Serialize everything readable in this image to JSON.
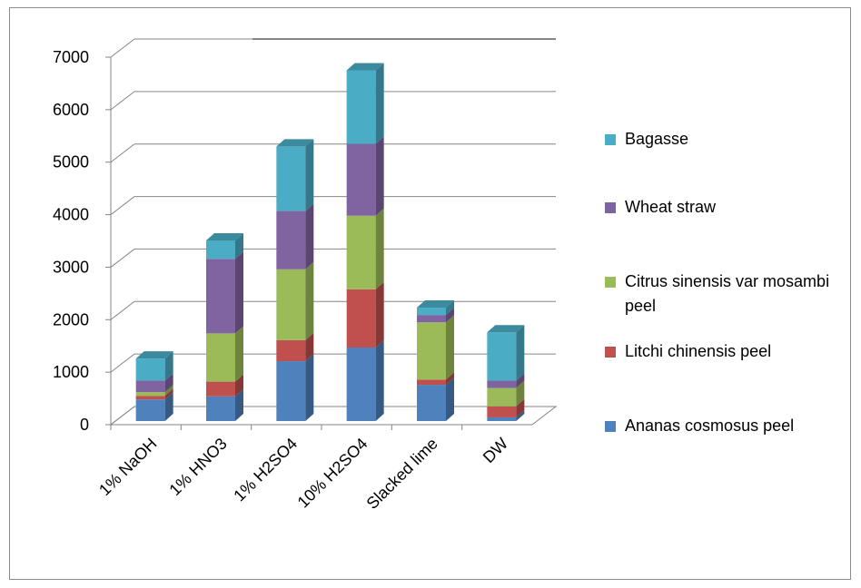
{
  "chart_data": {
    "type": "bar3d_stacked",
    "categories": [
      "1% NaOH",
      "1% HNO3",
      "1% H2SO4",
      "10% H2SO4",
      "Slacked lime",
      "DW"
    ],
    "series": [
      {
        "name": "Ananas cosmosus peel",
        "color": "#4f81bd",
        "values": [
          410,
          470,
          1140,
          1400,
          690,
          70
        ]
      },
      {
        "name": "Litchi chinensis peel",
        "color": "#c0504d",
        "values": [
          70,
          280,
          400,
          1110,
          100,
          210
        ]
      },
      {
        "name": "Citrus sinensis var mosambi peel",
        "color": "#9bbb59",
        "values": [
          70,
          920,
          1350,
          1400,
          1090,
          350
        ]
      },
      {
        "name": "Wheat straw",
        "color": "#8064a2",
        "values": [
          220,
          1420,
          1110,
          1370,
          140,
          140
        ]
      },
      {
        "name": "Bagasse",
        "color": "#4bacc6",
        "values": [
          420,
          350,
          1230,
          1400,
          140,
          920
        ]
      }
    ],
    "ylim": [
      0,
      7000
    ],
    "yticks": [
      0,
      1000,
      2000,
      3000,
      4000,
      5000,
      6000,
      7000
    ],
    "grid": true
  }
}
